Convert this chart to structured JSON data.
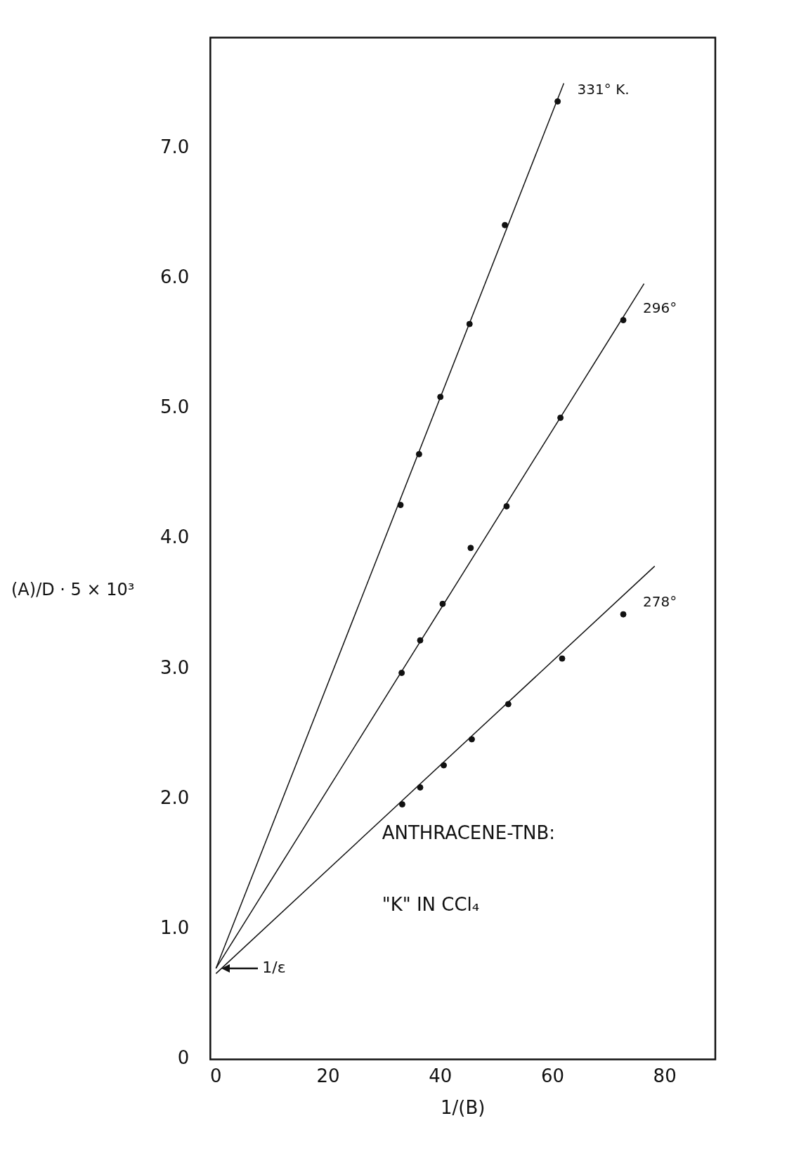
{
  "chart_data": {
    "type": "scatter",
    "xlabel": "1/(B)",
    "ylabel": "(A)/D · 5 × 10³",
    "xlim": [
      -1,
      89
    ],
    "ylim": [
      0,
      7.85
    ],
    "xticks": [
      0,
      20,
      40,
      60,
      80
    ],
    "yticks": [
      0,
      {
        "value": 1,
        "label": "1.0"
      },
      {
        "value": 2,
        "label": "2.0"
      },
      {
        "value": 3,
        "label": "3.0"
      },
      {
        "value": 4,
        "label": "4.0"
      },
      {
        "value": 5,
        "label": "5.0"
      },
      {
        "value": 6,
        "label": "6.0"
      },
      {
        "value": 7,
        "label": "7.0"
      }
    ],
    "grid": false,
    "legend": false,
    "marker": "circle",
    "annotations": [
      "ANTHRACENE-TNB:",
      "\"K\" IN CCl₄",
      {
        "text": "1/ε",
        "x": 0,
        "y": 0.7
      }
    ],
    "series": [
      {
        "name": "331° K.",
        "color": "#111111",
        "x": [
          32.9,
          36.2,
          40.0,
          45.2,
          51.5,
          60.9
        ],
        "values": [
          4.26,
          4.65,
          5.09,
          5.65,
          6.41,
          7.36
        ]
      },
      {
        "name": "296°",
        "color": "#111111",
        "x": [
          33.1,
          36.4,
          40.4,
          45.4,
          51.8,
          61.4,
          72.6
        ],
        "values": [
          2.97,
          3.22,
          3.5,
          3.93,
          4.25,
          4.93,
          5.68
        ]
      },
      {
        "name": "278°",
        "color": "#111111",
        "x": [
          33.2,
          36.4,
          40.6,
          45.6,
          52.1,
          61.7,
          72.6
        ],
        "values": [
          1.96,
          2.09,
          2.26,
          2.46,
          2.73,
          3.08,
          3.42
        ]
      },
      {
        "type": "line",
        "marker": "none",
        "color": "#111111",
        "x": [
          0,
          62
        ],
        "values": [
          0.7,
          7.5
        ]
      },
      {
        "type": "line",
        "marker": "none",
        "color": "#111111",
        "x": [
          0,
          76.3
        ],
        "values": [
          0.7,
          5.96
        ]
      },
      {
        "type": "line",
        "marker": "none",
        "color": "#111111",
        "x": [
          0,
          78.2
        ],
        "values": [
          0.66,
          3.79
        ]
      }
    ]
  }
}
